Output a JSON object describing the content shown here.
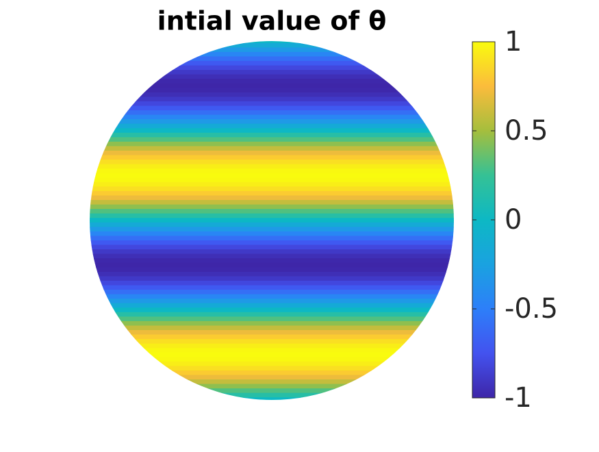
{
  "chart_data": {
    "type": "disk-heatmap",
    "title": "intial value of θ",
    "values": [
      0,
      -0.16,
      -0.31,
      -0.45,
      -0.59,
      -0.71,
      -0.81,
      -0.89,
      -0.95,
      -0.99,
      -1,
      -0.99,
      -0.95,
      -0.89,
      -0.81,
      -0.71,
      -0.59,
      -0.45,
      -0.31,
      -0.16,
      0,
      0.16,
      0.31,
      0.45,
      0.59,
      0.71,
      0.81,
      0.89,
      0.95,
      0.99,
      1,
      0.99,
      0.95,
      0.89,
      0.81,
      0.71,
      0.59,
      0.45,
      0.31,
      0.16,
      0,
      -0.16,
      -0.31,
      -0.45,
      -0.59,
      -0.71,
      -0.81,
      -0.89,
      -0.95,
      -0.99,
      -1,
      -0.99,
      -0.95,
      -0.89,
      -0.81,
      -0.71,
      -0.59,
      -0.45,
      -0.31,
      -0.16,
      0,
      0.16,
      0.31,
      0.45,
      0.59,
      0.71,
      0.81,
      0.89,
      0.95,
      0.99,
      1,
      0.99,
      0.95,
      0.89,
      0.81,
      0.71,
      0.59,
      0.45,
      0.31,
      0.16,
      0
    ],
    "clim": [
      -1,
      1
    ],
    "cticks": [
      -1,
      -0.5,
      0,
      0.5,
      1
    ],
    "colormap": [
      "#3e26a8",
      "#4352ef",
      "#2d7ff9",
      "#1aa2e0",
      "#0db8c4",
      "#35c195",
      "#a5be3d",
      "#fbbc3c",
      "#f9fb0e"
    ]
  }
}
